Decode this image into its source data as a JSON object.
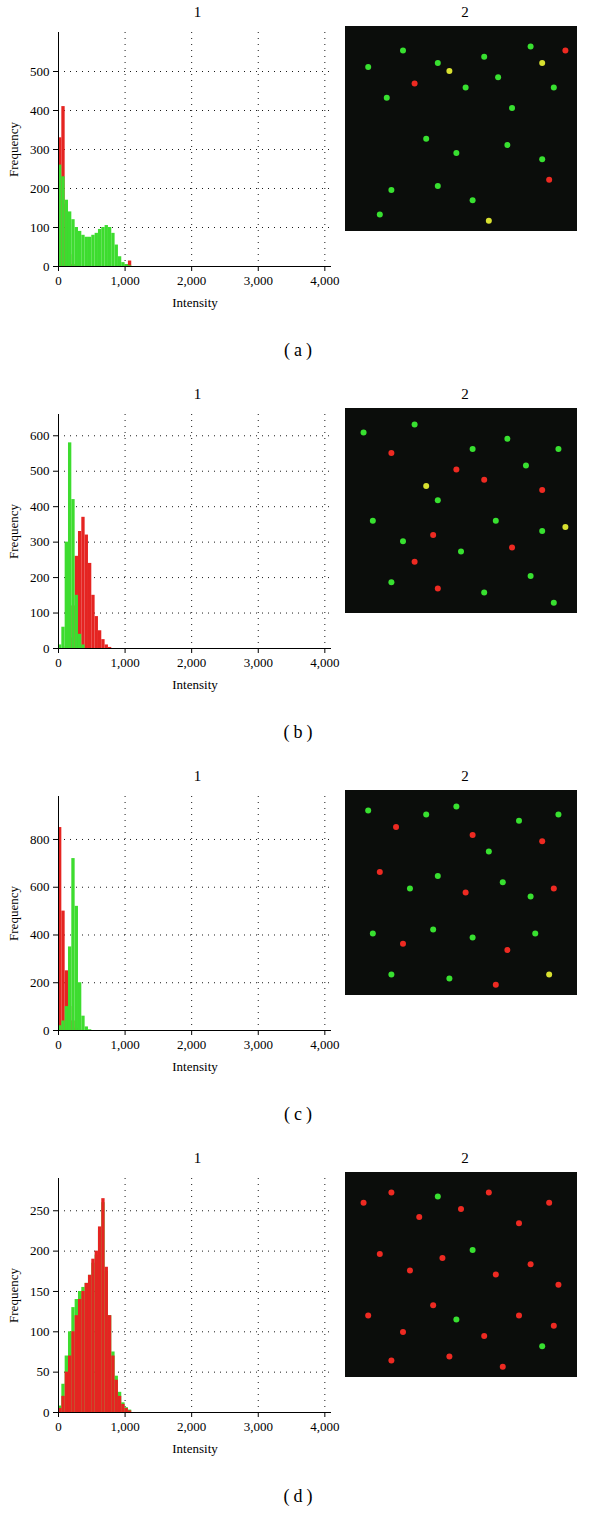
{
  "chart_data": [
    {
      "type": "histogram",
      "title": "1",
      "caption": "(a)",
      "image": {
        "title": "2"
      },
      "x_label": "Intensity",
      "y_label": "Frequency",
      "grid": true,
      "xlim": [
        0,
        4100
      ],
      "xticks": [
        0,
        {
          "value": 1000,
          "label": "1,000"
        },
        {
          "value": 2000,
          "label": "2,000"
        },
        {
          "value": 3000,
          "label": "3,000"
        },
        {
          "value": 4000,
          "label": "4,000"
        }
      ],
      "ylim": [
        0,
        600
      ],
      "yticks": [
        0,
        100,
        200,
        300,
        400,
        500
      ],
      "bins": [
        0,
        50,
        100,
        150,
        200,
        250,
        300,
        350,
        400,
        450,
        500,
        550,
        600,
        650,
        700,
        750,
        800,
        850,
        900,
        950,
        1000,
        1050,
        1100
      ],
      "series": [
        {
          "color": "#e52421",
          "values": [
            330,
            410,
            160,
            30,
            5,
            0,
            0,
            0,
            0,
            0,
            0,
            0,
            0,
            0,
            0,
            0,
            0,
            0,
            0,
            0,
            5,
            14
          ]
        },
        {
          "color": "#3ddc2f",
          "values": [
            260,
            230,
            170,
            140,
            120,
            100,
            90,
            80,
            75,
            75,
            80,
            85,
            95,
            100,
            105,
            100,
            85,
            55,
            25,
            10,
            5,
            2
          ]
        }
      ]
    },
    {
      "type": "histogram",
      "title": "1",
      "caption": "(b)",
      "image": {
        "title": "2"
      },
      "x_label": "Intensity",
      "y_label": "Frequency",
      "grid": true,
      "xlim": [
        0,
        4100
      ],
      "xticks": [
        0,
        {
          "value": 1000,
          "label": "1,000"
        },
        {
          "value": 2000,
          "label": "2,000"
        },
        {
          "value": 3000,
          "label": "3,000"
        },
        {
          "value": 4000,
          "label": "4,000"
        }
      ],
      "ylim": [
        0,
        660
      ],
      "yticks": [
        0,
        100,
        200,
        300,
        400,
        500,
        600
      ],
      "bins": [
        0,
        50,
        100,
        150,
        200,
        250,
        300,
        350,
        400,
        450,
        500,
        550,
        600,
        650,
        700,
        750,
        800,
        850,
        900,
        950,
        1000,
        1050,
        1100
      ],
      "series": [
        {
          "color": "#e52421",
          "values": [
            0,
            0,
            5,
            30,
            120,
            260,
            330,
            370,
            320,
            240,
            150,
            90,
            50,
            25,
            10,
            3,
            0,
            0,
            0,
            0,
            0,
            0
          ]
        },
        {
          "color": "#3ddc2f",
          "values": [
            10,
            60,
            300,
            580,
            420,
            150,
            40,
            10,
            0,
            0,
            0,
            0,
            0,
            0,
            0,
            0,
            0,
            0,
            0,
            0,
            0,
            0
          ]
        }
      ]
    },
    {
      "type": "histogram",
      "title": "1",
      "caption": "(c)",
      "image": {
        "title": "2"
      },
      "x_label": "Intensity",
      "y_label": "Frequency",
      "grid": true,
      "xlim": [
        0,
        4100
      ],
      "xticks": [
        0,
        {
          "value": 1000,
          "label": "1,000"
        },
        {
          "value": 2000,
          "label": "2,000"
        },
        {
          "value": 3000,
          "label": "3,000"
        },
        {
          "value": 4000,
          "label": "4,000"
        }
      ],
      "ylim": [
        0,
        980
      ],
      "yticks": [
        0,
        200,
        400,
        600,
        800
      ],
      "bins": [
        0,
        50,
        100,
        150,
        200,
        250,
        300,
        350,
        400,
        450,
        500,
        550,
        600,
        650,
        700,
        750,
        800,
        850,
        900,
        950,
        1000,
        1050,
        1100
      ],
      "series": [
        {
          "color": "#e52421",
          "values": [
            850,
            500,
            250,
            100,
            40,
            10,
            3,
            0,
            0,
            0,
            0,
            0,
            0,
            0,
            0,
            0,
            0,
            0,
            0,
            0,
            0,
            0
          ]
        },
        {
          "color": "#3ddc2f",
          "values": [
            20,
            40,
            100,
            350,
            720,
            520,
            200,
            60,
            15,
            3,
            0,
            0,
            0,
            0,
            0,
            0,
            0,
            0,
            0,
            0,
            0,
            0
          ]
        }
      ]
    },
    {
      "type": "histogram",
      "title": "1",
      "caption": "(d)",
      "image": {
        "title": "2"
      },
      "x_label": "Intensity",
      "y_label": "Frequency",
      "grid": true,
      "xlim": [
        0,
        4100
      ],
      "xticks": [
        0,
        {
          "value": 1000,
          "label": "1,000"
        },
        {
          "value": 2000,
          "label": "2,000"
        },
        {
          "value": 3000,
          "label": "3,000"
        },
        {
          "value": 4000,
          "label": "4,000"
        }
      ],
      "ylim": [
        0,
        290
      ],
      "yticks": [
        0,
        50,
        100,
        150,
        200,
        250
      ],
      "bins": [
        0,
        50,
        100,
        150,
        200,
        250,
        300,
        350,
        400,
        450,
        500,
        550,
        600,
        650,
        700,
        750,
        800,
        850,
        900,
        950,
        1000,
        1050,
        1100
      ],
      "series": [
        {
          "color": "#3ddc2f",
          "values": [
            8,
            35,
            70,
            100,
            130,
            140,
            150,
            155,
            160,
            170,
            185,
            195,
            225,
            260,
            175,
            120,
            75,
            45,
            25,
            12,
            6,
            3
          ]
        },
        {
          "color": "#e52421",
          "values": [
            5,
            20,
            50,
            70,
            100,
            120,
            140,
            150,
            160,
            170,
            190,
            200,
            230,
            265,
            180,
            120,
            70,
            40,
            20,
            10,
            5,
            2
          ]
        }
      ]
    }
  ]
}
